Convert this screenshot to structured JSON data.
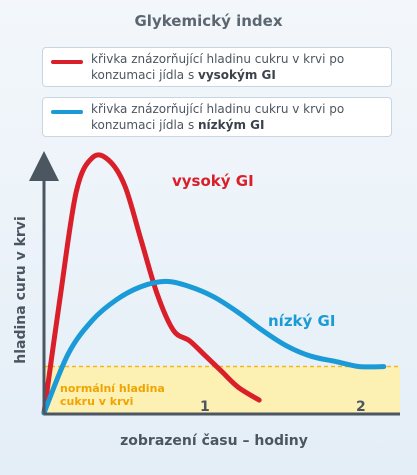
{
  "title": "Glykemický index",
  "legend": [
    {
      "color": "#d9202a",
      "text_before": "křivka znázorňující hladinu cukru v krvi po konzumaci jídla s ",
      "bold": "vysokým GI"
    },
    {
      "color": "#1a9ad6",
      "text_before": "křivka znázorňující hladinu cukru v krvi po konzumaci jídla s ",
      "bold": "nízkým GI"
    }
  ],
  "chart_data": {
    "type": "line",
    "title": "Glykemický index",
    "xlabel": "zobrazení času – hodiny",
    "ylabel": "hladina curu v krvi",
    "x_ticks": [
      "1",
      "2"
    ],
    "xlim": [
      0,
      2.2
    ],
    "ylim": [
      0,
      100
    ],
    "grid": false,
    "normal_band": {
      "label_line1": "normální hladina",
      "label_line2": "cukru v krvi",
      "level": 18,
      "color": "#fdf0b3",
      "line_color": "#f2b81e"
    },
    "series": [
      {
        "name": "vysoký GI",
        "color": "#d9202a",
        "x": [
          0,
          0.1,
          0.2,
          0.3,
          0.4,
          0.5,
          0.6,
          0.7,
          0.8,
          0.9,
          1.0,
          1.1,
          1.2,
          1.33
        ],
        "y": [
          0,
          45,
          86,
          99,
          98,
          88,
          67,
          46,
          32,
          28,
          22,
          16,
          10,
          5
        ]
      },
      {
        "name": "nízký GI",
        "color": "#1a9ad6",
        "x": [
          0,
          0.15,
          0.3,
          0.45,
          0.6,
          0.75,
          0.9,
          1.05,
          1.2,
          1.35,
          1.5,
          1.65,
          1.8,
          1.95,
          2.1
        ],
        "y": [
          0,
          23,
          36,
          44,
          49,
          51,
          49,
          45,
          39,
          32,
          26,
          22,
          20,
          18,
          18
        ]
      }
    ]
  }
}
